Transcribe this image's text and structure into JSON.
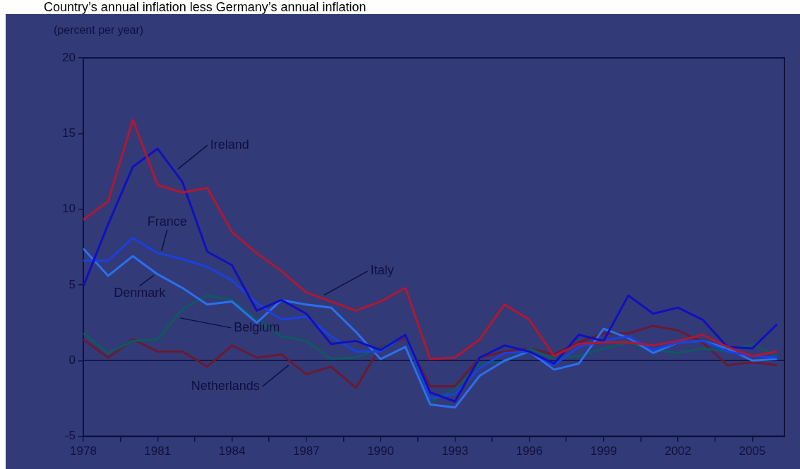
{
  "chart_data": {
    "type": "line",
    "title": "Country’s annual inflation less Germany’s annual inflation",
    "ylabel": "(percent per year)",
    "x": [
      1978,
      1979,
      1980,
      1981,
      1982,
      1983,
      1984,
      1985,
      1986,
      1987,
      1988,
      1989,
      1990,
      1991,
      1992,
      1993,
      1994,
      1995,
      1996,
      1997,
      1998,
      1999,
      2000,
      2001,
      2002,
      2003,
      2004,
      2005,
      2006
    ],
    "series": [
      {
        "name": "Italy",
        "color": "#b01830",
        "values": [
          9.3,
          10.5,
          15.9,
          11.6,
          11.1,
          11.4,
          8.5,
          7.1,
          5.9,
          4.5,
          3.9,
          3.3,
          3.9,
          4.8,
          0.1,
          0.2,
          1.4,
          3.7,
          2.7,
          0.3,
          1.1,
          1.2,
          1.2,
          1.0,
          1.3,
          1.7,
          0.9,
          0.3,
          0.6
        ]
      },
      {
        "name": "Ireland",
        "color": "#1010c0",
        "values": [
          4.9,
          9.0,
          12.8,
          14.0,
          11.8,
          7.2,
          6.3,
          3.3,
          4.0,
          3.1,
          1.1,
          1.3,
          0.7,
          1.7,
          -2.1,
          -2.7,
          0.2,
          1.0,
          0.6,
          -0.2,
          1.7,
          1.3,
          4.3,
          3.1,
          3.5,
          2.7,
          0.9,
          0.8,
          2.4
        ]
      },
      {
        "name": "France",
        "color": "#1a40e0",
        "values": [
          6.6,
          6.6,
          8.1,
          7.1,
          6.7,
          6.2,
          5.3,
          3.8,
          2.7,
          2.9,
          1.6,
          0.6,
          0.6,
          1.7,
          -2.5,
          -2.2,
          -0.5,
          0.5,
          0.6,
          -0.3,
          0.9,
          1.3,
          1.6,
          0.7,
          1.2,
          1.3,
          0.6,
          0.3,
          0.2
        ]
      },
      {
        "name": "Denmark",
        "color": "#2a70f0",
        "values": [
          7.4,
          5.6,
          6.9,
          5.7,
          4.8,
          3.7,
          3.9,
          2.5,
          4.0,
          3.7,
          3.5,
          1.9,
          0.1,
          0.9,
          -2.9,
          -3.1,
          -1.0,
          0.0,
          0.6,
          -0.6,
          -0.2,
          2.1,
          1.5,
          0.5,
          1.2,
          1.3,
          0.8,
          0.0,
          0.1
        ]
      },
      {
        "name": "Belgium",
        "color": "#0e5a60",
        "values": [
          1.8,
          0.5,
          1.3,
          1.4,
          3.4,
          4.3,
          4.0,
          2.7,
          1.6,
          1.3,
          0.1,
          0.2,
          0.8,
          1.7,
          -2.7,
          -1.9,
          -0.2,
          -0.1,
          0.8,
          0.1,
          0.3,
          0.8,
          1.2,
          0.7,
          0.5,
          0.8,
          0.6,
          1.1,
          0.3
        ]
      },
      {
        "name": "Netherlands",
        "color": "#6a1a30",
        "values": [
          1.4,
          0.2,
          1.4,
          0.6,
          0.6,
          -0.4,
          1.0,
          0.2,
          0.4,
          -0.9,
          -0.4,
          -1.8,
          0.9,
          1.5,
          -1.7,
          -1.7,
          0.2,
          0.6,
          0.8,
          0.4,
          1.2,
          1.8,
          1.8,
          2.3,
          2.0,
          1.2,
          -0.3,
          -0.1,
          -0.3
        ]
      }
    ],
    "xlim": [
      1978,
      2006.3
    ],
    "xticks": [
      1978,
      {
        "value": 1979.5,
        "label": null
      },
      1981,
      {
        "value": 1982.5,
        "label": null
      },
      1984,
      {
        "value": 1985.5,
        "label": null
      },
      1987,
      {
        "value": 1988.5,
        "label": null
      },
      1990,
      {
        "value": 1991.5,
        "label": null
      },
      1993,
      {
        "value": 1994.5,
        "label": null
      },
      1996,
      {
        "value": 1997.5,
        "label": null
      },
      1999,
      {
        "value": 2000.5,
        "label": null
      },
      2002,
      {
        "value": 2003.5,
        "label": null
      },
      2005
    ],
    "ylim": [
      -5,
      20
    ],
    "yticks": [
      -5,
      0,
      5,
      10,
      15,
      20
    ],
    "ref_lines": [
      {
        "axis": "y",
        "value": 0,
        "color": "#101040"
      }
    ],
    "grid": false,
    "legend": false,
    "marker": "none",
    "line_style": "solid"
  }
}
